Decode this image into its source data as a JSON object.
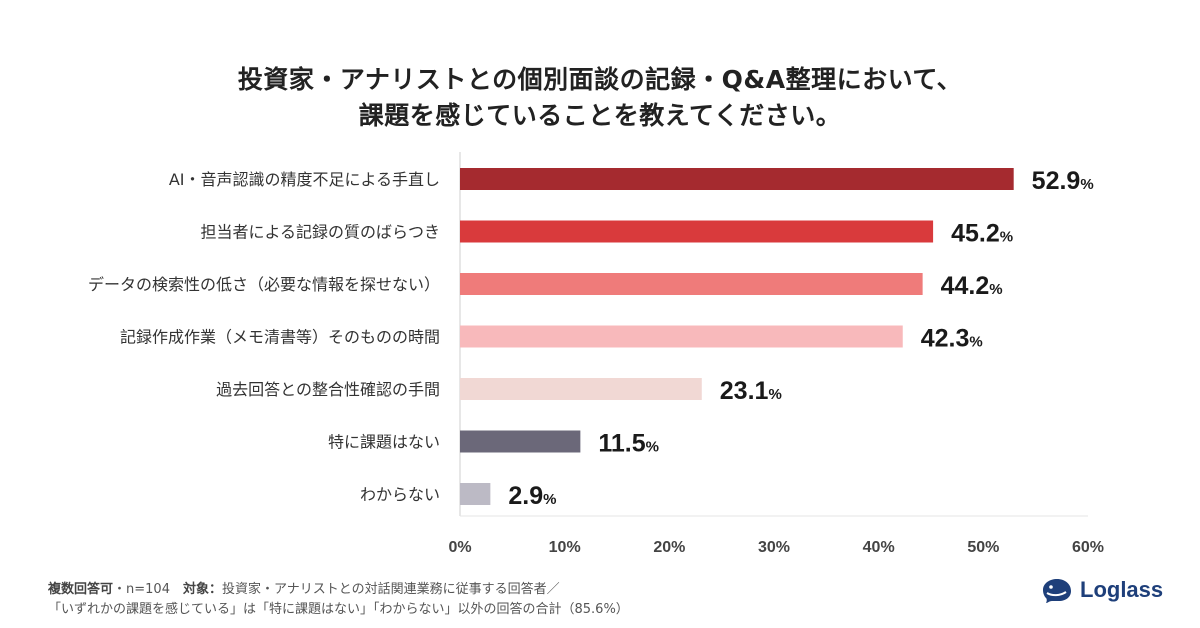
{
  "title": {
    "line1": "投資家・アナリストとの個別面談の記録・Q&A整理において、",
    "line2": "課題を感じていることを教えてください。"
  },
  "chart_data": {
    "type": "bar",
    "orientation": "horizontal",
    "categories": [
      "AI・音声認識の精度不足による手直し",
      "担当者による記録の質のばらつき",
      "データの検索性の低さ（必要な情報を探せない）",
      "記録作成作業（メモ清書等）そのものの時間",
      "過去回答との整合性確認の手間",
      "特に課題はない",
      "わからない"
    ],
    "values": [
      52.9,
      45.2,
      44.2,
      42.3,
      23.1,
      11.5,
      2.9
    ],
    "value_labels": [
      "52.9",
      "45.2",
      "44.2",
      "42.3",
      "23.1",
      "11.5",
      "2.9"
    ],
    "value_suffix": "%",
    "colors": [
      "#a52a2f",
      "#d93a3c",
      "#ef7b7a",
      "#f8b9bb",
      "#f1d8d4",
      "#6b6879",
      "#bcbac5"
    ],
    "xlim": [
      0,
      60
    ],
    "xticks": [
      "0%",
      "10%",
      "20%",
      "30%",
      "40%",
      "50%",
      "60%"
    ],
    "xlabel": "",
    "ylabel": "",
    "grid": false
  },
  "footnote": {
    "line1_bold": "複数回答可",
    "line1_rest": "・n=104　",
    "line1_bold2": "対象：",
    "line1_tail": "投資家・アナリストとの対話関連業務に従事する回答者／",
    "line2": "「いずれかの課題を感じている」は「特に課題はない」「わからない」以外の回答の合計（85.6%）"
  },
  "logo": {
    "text": "Loglass",
    "icon": "whale-logo-icon",
    "color": "#1e3f7a"
  }
}
